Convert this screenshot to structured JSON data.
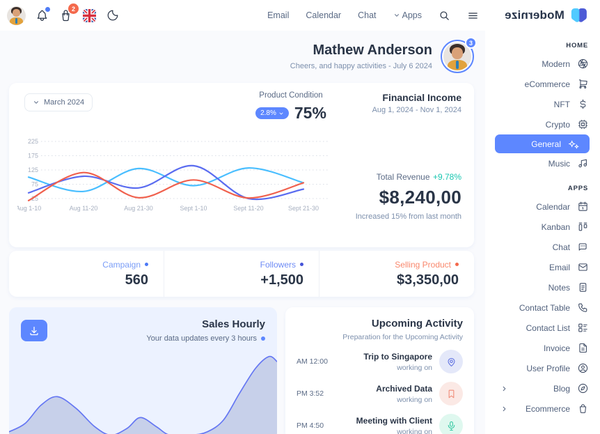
{
  "logo": {
    "text": "Modernize"
  },
  "topbar": {
    "nav": [
      "Email",
      "Calendar",
      "Chat",
      "Apps"
    ],
    "cart_badge": "2",
    "icons": [
      "user-avatar",
      "bell-icon",
      "shopping-bag-icon",
      "uk-flag-icon",
      "moon-icon",
      "search-icon",
      "menu-icon"
    ]
  },
  "sidebar": {
    "sections": [
      {
        "title": "HOME",
        "items": [
          {
            "label": "Modern",
            "icon": "aperture-icon"
          },
          {
            "label": "eCommerce",
            "icon": "cart-icon"
          },
          {
            "label": "NFT",
            "icon": "dollar-icon"
          },
          {
            "label": "Crypto",
            "icon": "cpu-icon"
          },
          {
            "label": "General",
            "icon": "sparkle-icon",
            "active": true
          },
          {
            "label": "Music",
            "icon": "music-icon"
          }
        ]
      },
      {
        "title": "APPS",
        "items": [
          {
            "label": "Calendar",
            "icon": "calendar-icon"
          },
          {
            "label": "Kanban",
            "icon": "kanban-icon"
          },
          {
            "label": "Chat",
            "icon": "chat-icon"
          },
          {
            "label": "Email",
            "icon": "mail-icon"
          },
          {
            "label": "Notes",
            "icon": "notes-icon"
          },
          {
            "label": "Contact Table",
            "icon": "phone-icon"
          },
          {
            "label": "Contact List",
            "icon": "list-details-icon"
          },
          {
            "label": "Invoice",
            "icon": "invoice-icon"
          },
          {
            "label": "User Profile",
            "icon": "user-circle-icon"
          },
          {
            "label": "Blog",
            "icon": "blog-icon",
            "group": true
          },
          {
            "label": "Ecommerce",
            "icon": "bag-icon",
            "group": true
          }
        ]
      }
    ]
  },
  "greeting": {
    "name": "Mathew Anderson",
    "subtitle": "Cheers, and happy activities - July 6 2024",
    "badge": "3"
  },
  "finance": {
    "period": "March 2024",
    "product_condition": {
      "label": "Product Condition",
      "pill": "2.8%",
      "value": "75%"
    },
    "income": {
      "title": "Financial Income",
      "range": "Aug 1, 2024 - Nov 1, 2024"
    },
    "revenue": {
      "label": "Total Revenue",
      "delta": "+9.78%",
      "delta_color": "#18C6B0",
      "value": "$8,240,00",
      "note": "Increased 15% from last month"
    }
  },
  "stats": [
    {
      "label": "Campaign",
      "value": "560",
      "label_color": "#7A9DF7",
      "dot_color": "#4C79F6"
    },
    {
      "label": "Followers",
      "value": "+1,500",
      "label_color": "#6E8BF5",
      "dot_color": "#4553D8"
    },
    {
      "label": "Selling Product",
      "value": "$3,350,00",
      "label_color": "#F9876C",
      "dot_color": "#F4694C"
    }
  ],
  "sales": {
    "title": "Sales Hourly",
    "subtitle": "Your data updates every 3 hours"
  },
  "upcoming": {
    "title": "Upcoming Activity",
    "subtitle": "Preparation for the Upcoming Activity",
    "items": [
      {
        "time": "AM 12:00",
        "title": "Trip to Singapore",
        "status": "working on",
        "icon": "location-pin-icon",
        "color": "#5D6FE0",
        "bg": "#E4E8F9"
      },
      {
        "time": "PM 3:52",
        "title": "Archived Data",
        "status": "working on",
        "icon": "bookmark-icon",
        "color": "#F08A76",
        "bg": "#FBE9E5"
      },
      {
        "time": "PM 4:50",
        "title": "Meeting with Client",
        "status": "working on",
        "icon": "microphone-icon",
        "color": "#2DC79F",
        "bg": "#DFF8EF"
      }
    ]
  },
  "chart_data": [
    {
      "type": "line",
      "title": "Financial Income",
      "categories": [
        "Aug 1-10",
        "Aug 11-20",
        "Aug 21-30",
        "Sept 1-10",
        "Sept 11-20",
        "Sept 21-30"
      ],
      "yticks": [
        225,
        175,
        125,
        75,
        25
      ],
      "ylim": [
        25,
        225
      ],
      "grid": "dotted-horizontal",
      "legend": "none",
      "series": [
        {
          "name": "sky",
          "color": "#49BEFF",
          "values": [
            100,
            50,
            130,
            70,
            132,
            80
          ]
        },
        {
          "name": "indigo",
          "color": "#5A6CF0",
          "values": [
            45,
            103,
            62,
            140,
            25,
            58
          ]
        },
        {
          "name": "red",
          "color": "#F0614E",
          "values": [
            18,
            116,
            28,
            90,
            27,
            80
          ]
        }
      ]
    },
    {
      "type": "area",
      "title": "Sales Hourly",
      "x": [
        0,
        6,
        12,
        18,
        25,
        32,
        38,
        44,
        49,
        55,
        60,
        68,
        74,
        80,
        86,
        92,
        97,
        100
      ],
      "values": [
        6,
        16,
        38,
        48,
        34,
        12,
        2,
        10,
        23,
        12,
        2,
        2,
        6,
        20,
        52,
        82,
        96,
        90
      ],
      "color": "#6577F3",
      "fill": "rgba(139,153,200,0.38)"
    }
  ]
}
